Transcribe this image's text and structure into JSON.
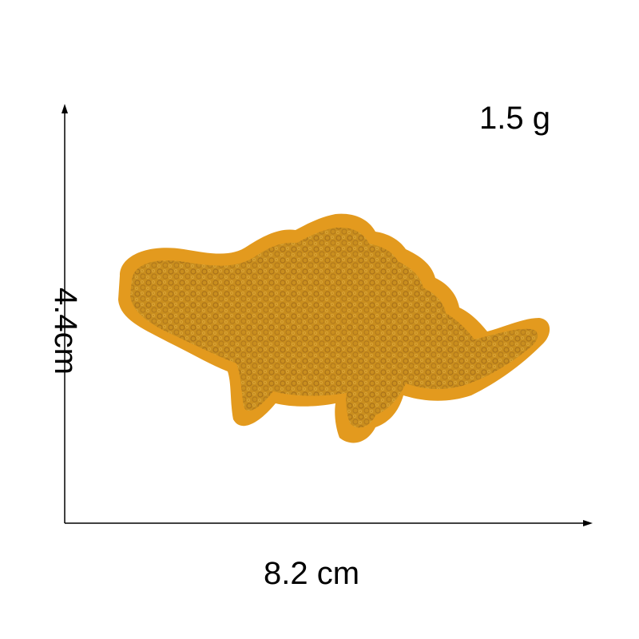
{
  "measurements": {
    "weight": "1.5 g",
    "width": "8.2 cm",
    "height": "4.4cm"
  },
  "colors": {
    "felt": "#E39A1E",
    "chenille": "#C98E1E",
    "chenille_shadow": "#A9721A",
    "axis": "#000000"
  },
  "subject": "dinosaur-chenille-patch"
}
